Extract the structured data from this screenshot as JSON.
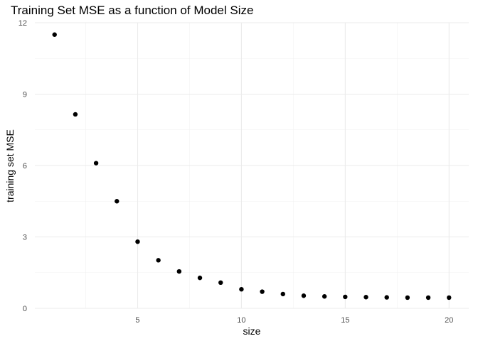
{
  "chart_data": {
    "type": "scatter",
    "title": "Training Set MSE as a function of Model Size",
    "xlabel": "size",
    "ylabel": "training set MSE",
    "xlim": [
      0.05,
      20.95
    ],
    "ylim": [
      0,
      12
    ],
    "x_ticks": [
      5,
      10,
      15,
      20
    ],
    "y_ticks": [
      0,
      3,
      6,
      9,
      12
    ],
    "x_tick_labels": [
      "5",
      "10",
      "15",
      "20"
    ],
    "y_tick_labels": [
      "0",
      "3",
      "6",
      "9",
      "12"
    ],
    "grid": true,
    "legend": "none",
    "point_color": "#000000",
    "series": [
      {
        "x": [
          1,
          2,
          3,
          4,
          5,
          6,
          7,
          8,
          9,
          10,
          11,
          12,
          13,
          14,
          15,
          16,
          17,
          18,
          19,
          20
        ],
        "y": [
          11.5,
          8.15,
          6.1,
          4.5,
          2.8,
          2.02,
          1.55,
          1.28,
          1.08,
          0.8,
          0.7,
          0.6,
          0.53,
          0.5,
          0.48,
          0.47,
          0.46,
          0.45,
          0.45,
          0.45
        ]
      }
    ]
  }
}
